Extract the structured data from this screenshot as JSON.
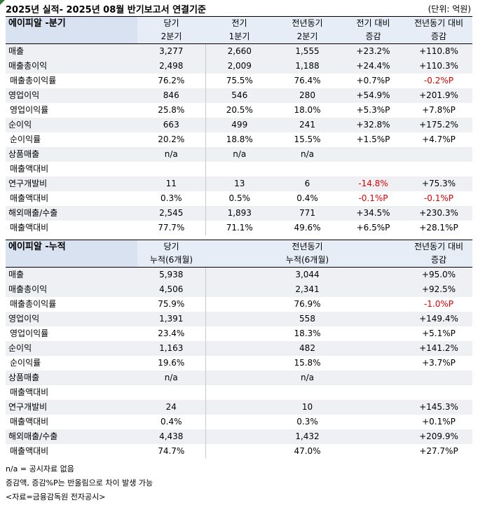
{
  "page": {
    "title": "2025년 실적- 2025년 08월 반기보고서 연결기준",
    "unit": "(단위: 억원)"
  },
  "table1": {
    "section": "에이피알 -분기",
    "headers_top": [
      "당기",
      "전기",
      "전년동기",
      "전기 대비",
      "전년동기 대비"
    ],
    "headers_bottom": [
      "2분기",
      "1분기",
      "2분기",
      "증감",
      "증감"
    ],
    "rows": [
      {
        "label": "매출",
        "cells": [
          "3,277",
          "2,660",
          "1,555",
          "+23.2%",
          "+110.8%"
        ],
        "style": "r1",
        "neg": [
          false,
          false,
          false,
          false,
          false
        ]
      },
      {
        "label": "매출총이익",
        "cells": [
          "2,498",
          "2,009",
          "1,188",
          "+24.4%",
          "+110.3%"
        ],
        "style": "r1",
        "neg": [
          false,
          false,
          false,
          false,
          false
        ]
      },
      {
        "label": "매출총이익률",
        "cells": [
          "76.2%",
          "75.5%",
          "76.4%",
          "+0.7%P",
          "-0.2%P"
        ],
        "style": "r2",
        "neg": [
          false,
          false,
          false,
          false,
          true
        ]
      },
      {
        "label": "영업이익",
        "cells": [
          "846",
          "546",
          "280",
          "+54.9%",
          "+201.9%"
        ],
        "style": "r1",
        "neg": [
          false,
          false,
          false,
          false,
          false
        ]
      },
      {
        "label": "영업이익률",
        "cells": [
          "25.8%",
          "20.5%",
          "18.0%",
          "+5.3%P",
          "+7.8%P"
        ],
        "style": "r2",
        "neg": [
          false,
          false,
          false,
          false,
          false
        ]
      },
      {
        "label": "순이익",
        "cells": [
          "663",
          "499",
          "241",
          "+32.8%",
          "+175.2%"
        ],
        "style": "r1",
        "neg": [
          false,
          false,
          false,
          false,
          false
        ]
      },
      {
        "label": "순이익률",
        "cells": [
          "20.2%",
          "18.8%",
          "15.5%",
          "+1.5%P",
          "+4.7%P"
        ],
        "style": "r2",
        "neg": [
          false,
          false,
          false,
          false,
          false
        ]
      },
      {
        "label": "상품매출",
        "cells": [
          "n/a",
          "n/a",
          "n/a",
          "",
          ""
        ],
        "style": "r1",
        "neg": [
          false,
          false,
          false,
          false,
          false
        ]
      },
      {
        "label": "매출액대비",
        "cells": [
          "",
          "",
          "",
          "",
          ""
        ],
        "style": "r2",
        "neg": [
          false,
          false,
          false,
          false,
          false
        ]
      },
      {
        "label": "연구개발비",
        "cells": [
          "11",
          "13",
          "6",
          "-14.8%",
          "+75.3%"
        ],
        "style": "r1",
        "neg": [
          false,
          false,
          false,
          true,
          false
        ]
      },
      {
        "label": "매출액대비",
        "cells": [
          "0.3%",
          "0.5%",
          "0.4%",
          "-0.1%P",
          "-0.1%P"
        ],
        "style": "r2",
        "neg": [
          false,
          false,
          false,
          true,
          true
        ]
      },
      {
        "label": "해외매출/수출",
        "cells": [
          "2,545",
          "1,893",
          "771",
          "+34.5%",
          "+230.3%"
        ],
        "style": "r1",
        "neg": [
          false,
          false,
          false,
          false,
          false
        ]
      },
      {
        "label": "매출액대비",
        "cells": [
          "77.7%",
          "71.1%",
          "49.6%",
          "+6.5%P",
          "+28.1%P"
        ],
        "style": "r2",
        "neg": [
          false,
          false,
          false,
          false,
          false
        ]
      }
    ]
  },
  "table2": {
    "section": "에이피알 -누적",
    "headers_top": [
      "당기",
      "",
      "전년동기",
      "",
      "전년동기 대비"
    ],
    "headers_bottom": [
      "누적(6개월)",
      "",
      "누적(6개월)",
      "",
      "증감"
    ],
    "rows": [
      {
        "label": "매출",
        "cells": [
          "5,938",
          "",
          "3,044",
          "",
          "+95.0%"
        ],
        "style": "r1",
        "neg": [
          false,
          false,
          false,
          false,
          false
        ]
      },
      {
        "label": "매출총이익",
        "cells": [
          "4,506",
          "",
          "2,341",
          "",
          "+92.5%"
        ],
        "style": "r1",
        "neg": [
          false,
          false,
          false,
          false,
          false
        ]
      },
      {
        "label": "매출총이익률",
        "cells": [
          "75.9%",
          "",
          "76.9%",
          "",
          "-1.0%P"
        ],
        "style": "r2",
        "neg": [
          false,
          false,
          false,
          false,
          true
        ]
      },
      {
        "label": "영업이익",
        "cells": [
          "1,391",
          "",
          "558",
          "",
          "+149.4%"
        ],
        "style": "r1",
        "neg": [
          false,
          false,
          false,
          false,
          false
        ]
      },
      {
        "label": "영업이익률",
        "cells": [
          "23.4%",
          "",
          "18.3%",
          "",
          "+5.1%P"
        ],
        "style": "r2",
        "neg": [
          false,
          false,
          false,
          false,
          false
        ]
      },
      {
        "label": "순이익",
        "cells": [
          "1,163",
          "",
          "482",
          "",
          "+141.2%"
        ],
        "style": "r1",
        "neg": [
          false,
          false,
          false,
          false,
          false
        ]
      },
      {
        "label": "순이익률",
        "cells": [
          "19.6%",
          "",
          "15.8%",
          "",
          "+3.7%P"
        ],
        "style": "r2",
        "neg": [
          false,
          false,
          false,
          false,
          false
        ]
      },
      {
        "label": "상품매출",
        "cells": [
          "n/a",
          "",
          "n/a",
          "",
          ""
        ],
        "style": "r1",
        "neg": [
          false,
          false,
          false,
          false,
          false
        ]
      },
      {
        "label": "매출액대비",
        "cells": [
          "",
          "",
          "",
          "",
          ""
        ],
        "style": "r2",
        "neg": [
          false,
          false,
          false,
          false,
          false
        ]
      },
      {
        "label": "연구개발비",
        "cells": [
          "24",
          "",
          "10",
          "",
          "+145.3%"
        ],
        "style": "r1",
        "neg": [
          false,
          false,
          false,
          false,
          false
        ]
      },
      {
        "label": "매출액대비",
        "cells": [
          "0.4%",
          "",
          "0.3%",
          "",
          "+0.1%P"
        ],
        "style": "r2",
        "neg": [
          false,
          false,
          false,
          false,
          false
        ]
      },
      {
        "label": "해외매출/수출",
        "cells": [
          "4,438",
          "",
          "1,432",
          "",
          "+209.9%"
        ],
        "style": "r1",
        "neg": [
          false,
          false,
          false,
          false,
          false
        ]
      },
      {
        "label": "매출액대비",
        "cells": [
          "74.7%",
          "",
          "47.0%",
          "",
          "+27.7%P"
        ],
        "style": "r2",
        "neg": [
          false,
          false,
          false,
          false,
          false
        ]
      }
    ]
  },
  "notes": [
    "n/a = 공시자료 없음",
    "증감액, 증감%P는 반올림으로 차이 발생 가능",
    "<자료=금융감독원 전자공시>"
  ],
  "colors": {
    "header_bg": "#e7edf7",
    "row_bg": "#eef0f3",
    "negative": "#e60000"
  }
}
